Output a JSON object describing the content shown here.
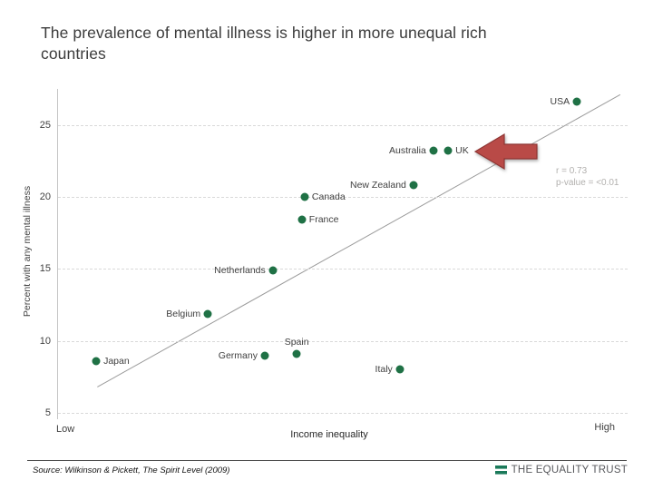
{
  "slide": {
    "title": "The prevalence of mental illness is higher in more unequal rich countries",
    "footer": {
      "source": "Source: Wilkinson & Pickett, The Spirit Level (2009)",
      "logo_text": "THE EQUALITY TRUST"
    }
  },
  "chart_data": {
    "type": "scatter",
    "title": "The prevalence of mental illness is higher in more unequal rich countries",
    "xlabel": "Income inequality",
    "ylabel": "Percent with any mental illness",
    "x_axis_end_labels": {
      "low": "Low",
      "high": "High"
    },
    "x_scale": "relative 0-100 (no numeric x ticks shown)",
    "ylim": [
      5,
      27.5
    ],
    "yticks": [
      5,
      10,
      15,
      20,
      25
    ],
    "grid": "horizontal dashed",
    "legend": "none",
    "stats": {
      "line1": "r = 0.73",
      "line2": "p-value = <0.01"
    },
    "points": [
      {
        "name": "Japan",
        "x": 6.7,
        "y": 8.6,
        "label_side": "right"
      },
      {
        "name": "Belgium",
        "x": 26.3,
        "y": 11.9,
        "label_side": "left"
      },
      {
        "name": "Germany",
        "x": 36.3,
        "y": 9.0,
        "label_side": "left"
      },
      {
        "name": "Netherlands",
        "x": 37.7,
        "y": 14.9,
        "label_side": "left"
      },
      {
        "name": "Spain",
        "x": 41.9,
        "y": 9.1,
        "label_side": "above"
      },
      {
        "name": "France",
        "x": 42.8,
        "y": 18.4,
        "label_side": "right"
      },
      {
        "name": "Canada",
        "x": 43.3,
        "y": 20.0,
        "label_side": "right"
      },
      {
        "name": "Italy",
        "x": 60.0,
        "y": 8.0,
        "label_side": "left"
      },
      {
        "name": "New Zealand",
        "x": 62.4,
        "y": 20.8,
        "label_side": "left"
      },
      {
        "name": "Australia",
        "x": 65.9,
        "y": 23.2,
        "label_side": "left"
      },
      {
        "name": "UK",
        "x": 68.5,
        "y": 23.2,
        "label_side": "right"
      },
      {
        "name": "USA",
        "x": 91.1,
        "y": 26.6,
        "label_side": "left"
      }
    ],
    "trendline": {
      "x1": 6.9,
      "y1": 6.8,
      "x2": 98.7,
      "y2": 27.1
    },
    "annotation": {
      "type": "block-arrow-left",
      "target": "UK"
    }
  },
  "colors": {
    "dot_green": "#1f7145",
    "trend_line": "#9b9b9b",
    "arrow_fill": "#b94a47",
    "arrow_stroke": "#8e3634",
    "logo_green": "#1b7a5a",
    "stats_text": "#b2b0ae"
  }
}
